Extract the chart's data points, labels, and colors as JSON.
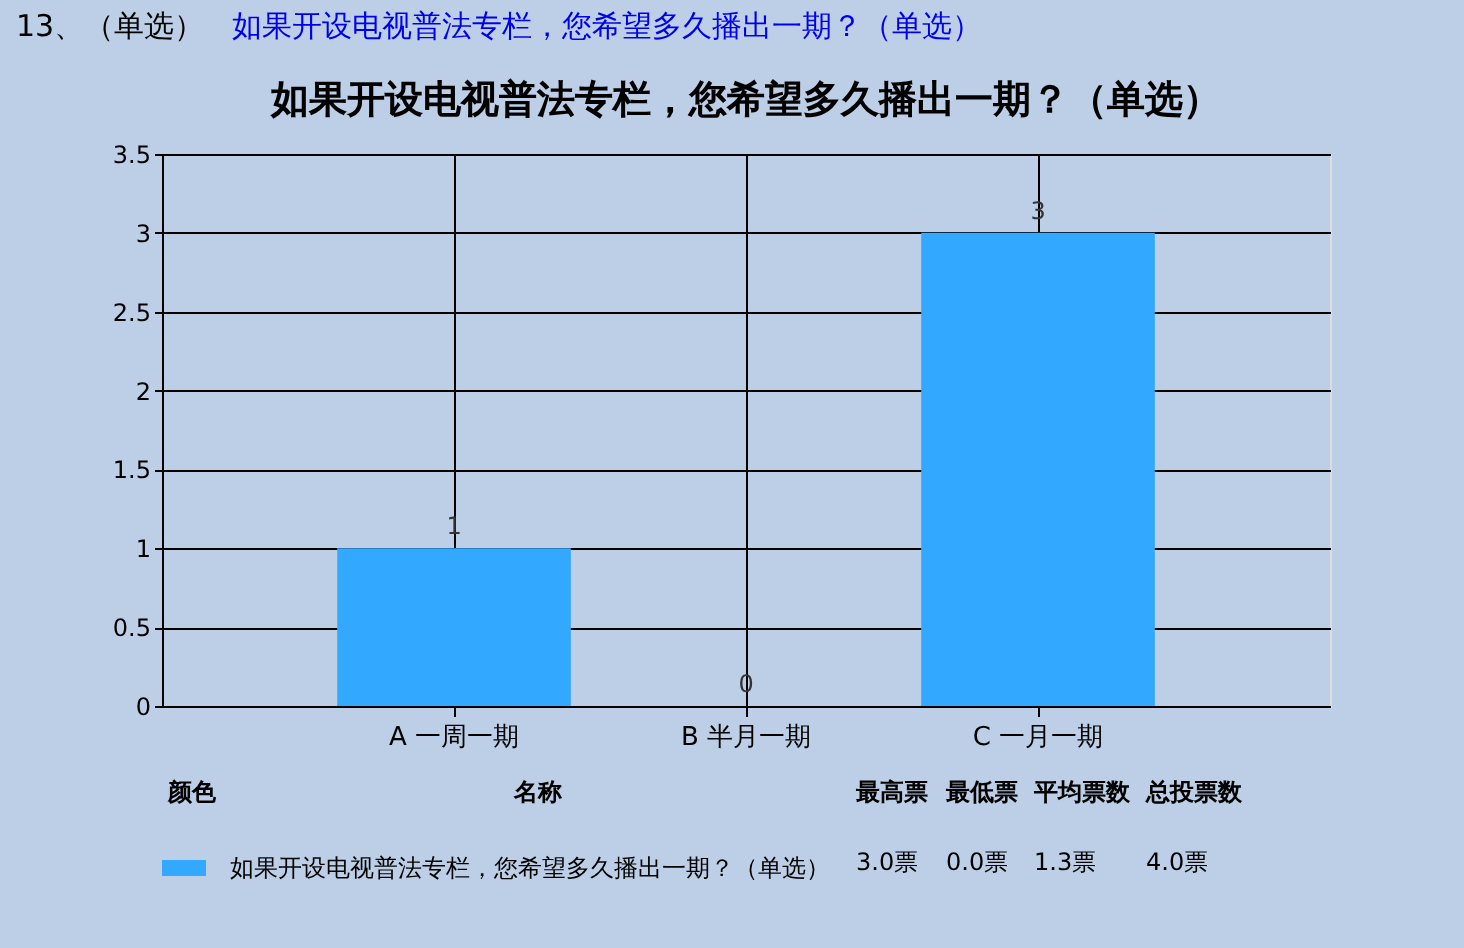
{
  "chart_data": {
    "type": "bar",
    "title": "如果开设电视普法专栏，您希望多久播出一期？（单选）",
    "categories": [
      "A 一周一期",
      "B 半月一期",
      "C 一月一期"
    ],
    "series": [
      {
        "name": "如果开设电视普法专栏，您希望多久播出一期？（单选）",
        "color": "#33a8ff",
        "values": [
          1,
          0,
          3
        ]
      }
    ],
    "ylim": [
      0,
      3.5
    ],
    "yticks": [
      0,
      0.5,
      1,
      1.5,
      2,
      2.5,
      3,
      3.5
    ],
    "grid": true,
    "legend": "bottom",
    "data_labels": true,
    "annotations": [
      "13、（单选）",
      "如果开设电视普法专栏，您希望多久播出一期？（单选）",
      "颜色",
      "名称",
      "最高票",
      "最低票",
      "平均票数",
      "总投票数",
      "3.0票",
      "0.0票",
      "1.3票",
      "4.0票"
    ]
  }
}
